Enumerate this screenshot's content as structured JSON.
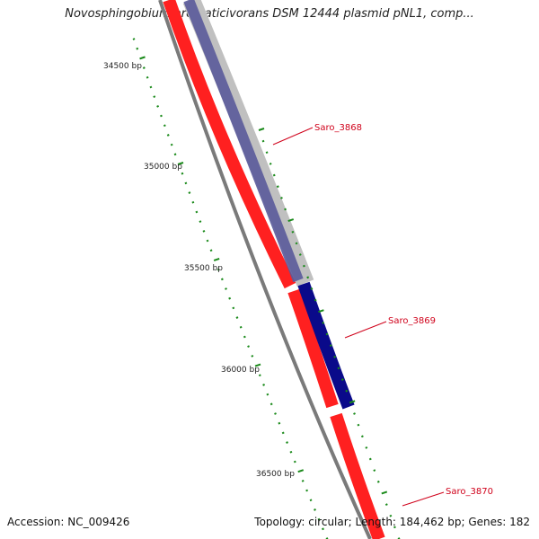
{
  "title": "Novosphingobium aromaticivorans DSM 12444 plasmid pNL1, comp...",
  "accession": "Accession: NC_009426",
  "summary": "Topology: circular; Length: 184,462 bp; Genes: 182",
  "ruler": {
    "labels": [
      "34500 bp",
      "35000 bp",
      "35500 bp",
      "36000 bp",
      "36500 bp"
    ]
  },
  "genes": [
    {
      "name": "Saro_3868",
      "strand": "forward",
      "color": "#0a0a8a",
      "highlight": true
    },
    {
      "name": "Saro_3869",
      "strand": "forward",
      "color": "#0a0a8a",
      "highlight": false
    },
    {
      "name": "Saro_3870",
      "strand": "reverse",
      "color": "#ff0000",
      "highlight": false
    }
  ],
  "colors": {
    "reverse_strand": "#ff0000",
    "forward_strand": "#0a0a8a",
    "backbone": "#7a7a7a",
    "tick": "#1a8a1a",
    "label": "#d0021b"
  }
}
